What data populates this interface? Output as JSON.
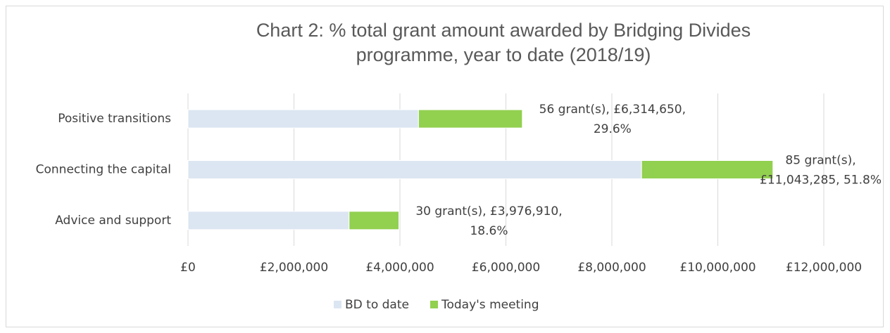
{
  "chart_data": {
    "type": "stacked_barh",
    "title": [
      "Chart 2: % total grant amount awarded by Bridging Divides",
      "programme, year to date (2018/19)"
    ],
    "categories": [
      "Positive transitions",
      "Connecting the capital",
      "Advice and support"
    ],
    "series": [
      {
        "name": "BD to date",
        "color": "#dce6f2",
        "values": [
          4350000,
          8560000,
          3040000
        ]
      },
      {
        "name": "Today's meeting",
        "color": "#92d050",
        "values": [
          1960000,
          2480000,
          940000
        ]
      }
    ],
    "annotations": [
      [
        "56 grant(s), £6,314,650,",
        "29.6%"
      ],
      [
        "85 grant(s),",
        "£11,043,285, 51.8%"
      ],
      [
        "30 grant(s), £3,976,910,",
        "18.6%"
      ]
    ],
    "xlim": [
      0,
      12000000
    ],
    "xticks": [
      {
        "value": 0,
        "label": "£0"
      },
      {
        "value": 2000000,
        "label": "£2,000,000"
      },
      {
        "value": 4000000,
        "label": "£4,000,000"
      },
      {
        "value": 6000000,
        "label": "£6,000,000"
      },
      {
        "value": 8000000,
        "label": "£8,000,000"
      },
      {
        "value": 10000000,
        "label": "£10,000,000"
      },
      {
        "value": 12000000,
        "label": "£12,000,000"
      }
    ],
    "grid": true,
    "legend": "bottom"
  }
}
